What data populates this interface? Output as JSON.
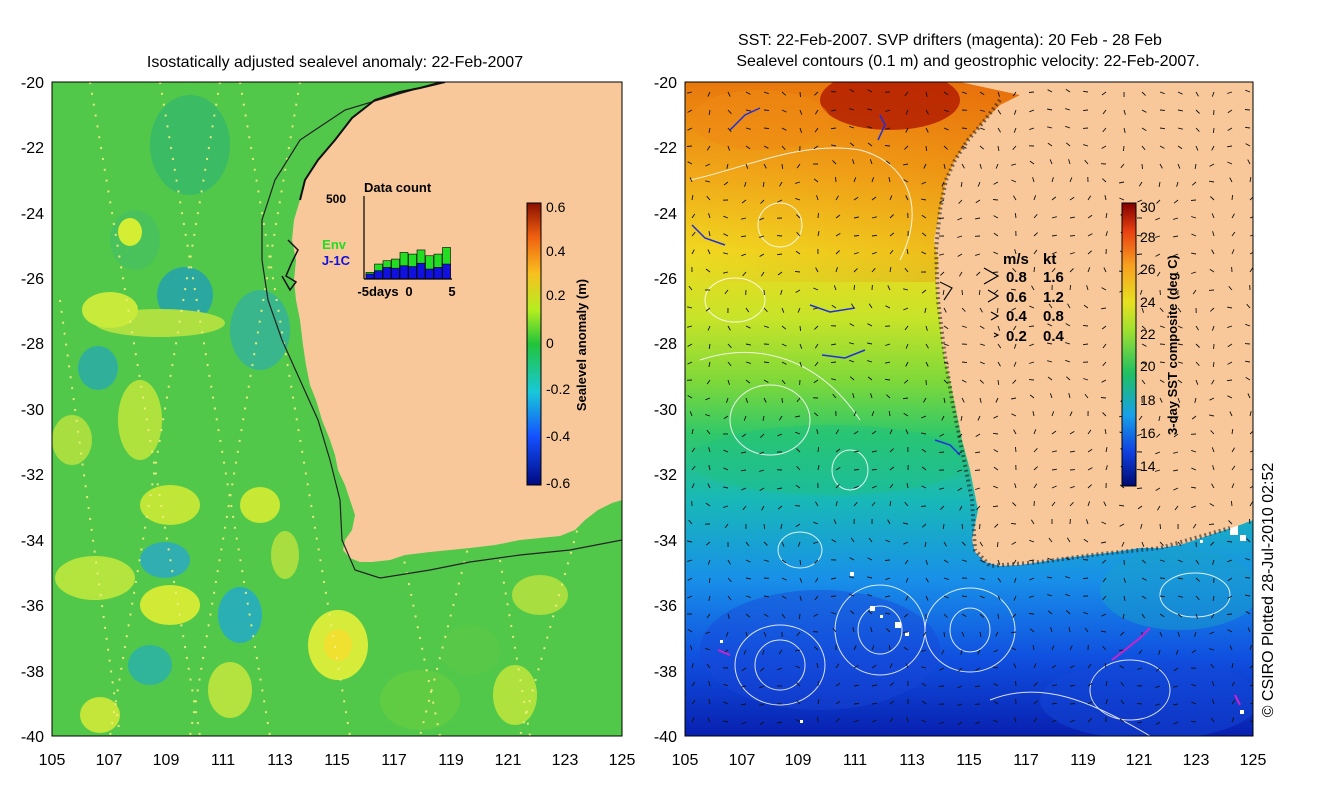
{
  "left_panel": {
    "title": "Isostatically adjusted sealevel anomaly: 22-Feb-2007",
    "x_ticks": [
      "105",
      "107",
      "109",
      "111",
      "113",
      "115",
      "117",
      "119",
      "121",
      "123",
      "125"
    ],
    "y_ticks": [
      "-20",
      "-22",
      "-24",
      "-26",
      "-28",
      "-30",
      "-32",
      "-34",
      "-36",
      "-38",
      "-40"
    ],
    "colorbar": {
      "label": "Sealevel anomaly (m)",
      "ticks": [
        "0.6",
        "0.4",
        "0.2",
        "0",
        "-0.2",
        "-0.4",
        "-0.6"
      ]
    },
    "inset": {
      "title": "Data count",
      "y_max": "500",
      "legend_env": "Env",
      "legend_j1c": "J-1C",
      "x_label_left": "-5days",
      "x_label_mid": "0",
      "x_label_right": "5",
      "env_color": "#22dd22",
      "j1c_color": "#1111dd",
      "env_counts": [
        40,
        90,
        110,
        120,
        160,
        150,
        175,
        140,
        150,
        190
      ],
      "j1c_counts": [
        30,
        50,
        70,
        65,
        80,
        75,
        95,
        60,
        70,
        90
      ]
    }
  },
  "right_panel": {
    "title_line1": "SST: 22-Feb-2007. SVP drifters (magenta): 20 Feb - 28 Feb",
    "title_line2": "Sealevel contours (0.1 m) and geostrophic velocity: 22-Feb-2007.",
    "x_ticks": [
      "105",
      "107",
      "109",
      "111",
      "113",
      "115",
      "117",
      "119",
      "121",
      "123",
      "125"
    ],
    "y_ticks": [
      "-20",
      "-22",
      "-24",
      "-26",
      "-28",
      "-30",
      "-32",
      "-34",
      "-36",
      "-38",
      "-40"
    ],
    "colorbar": {
      "label": "3-day SST composite (deg C)",
      "ticks": [
        "30",
        "28",
        "26",
        "24",
        "22",
        "20",
        "18",
        "16",
        "14"
      ]
    },
    "velocity_legend": {
      "header_ms": "m/s",
      "header_kt": "kt",
      "rows": [
        {
          "ms": "0.8",
          "kt": "1.6"
        },
        {
          "ms": "0.6",
          "kt": "1.2"
        },
        {
          "ms": "0.4",
          "kt": "0.8"
        },
        {
          "ms": "0.2",
          "kt": "0.4"
        }
      ]
    }
  },
  "credit": "© CSIRO Plotted 28-Jul-2010 02:52",
  "colors": {
    "land": "#f9c89a",
    "sea_green": "#4fd24f",
    "coast": "#111111"
  }
}
